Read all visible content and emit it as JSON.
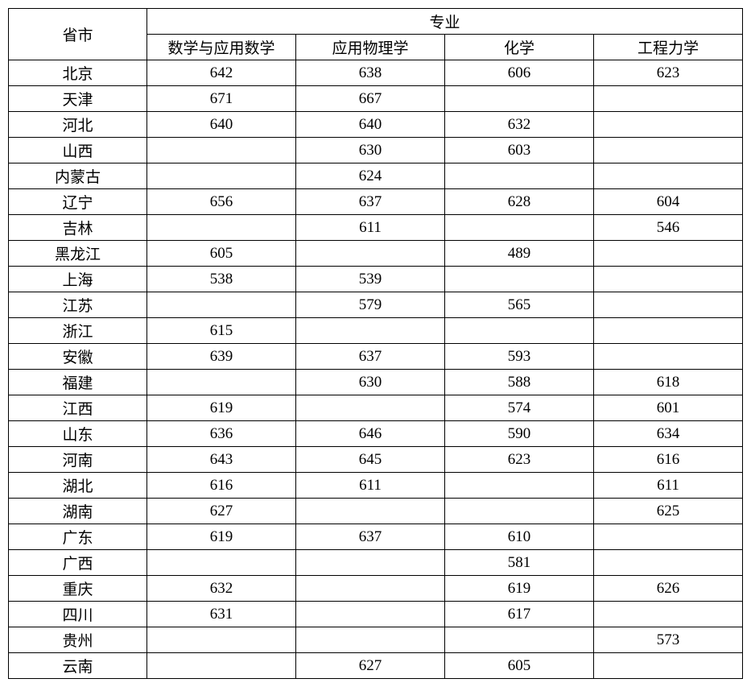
{
  "headers": {
    "province": "省市",
    "majorGroup": "专业",
    "majors": [
      "数学与应用数学",
      "应用物理学",
      "化学",
      "工程力学"
    ]
  },
  "rows": [
    {
      "province": "北京",
      "values": [
        "642",
        "638",
        "606",
        "623"
      ]
    },
    {
      "province": "天津",
      "values": [
        "671",
        "667",
        "",
        ""
      ]
    },
    {
      "province": "河北",
      "values": [
        "640",
        "640",
        "632",
        ""
      ]
    },
    {
      "province": "山西",
      "values": [
        "",
        "630",
        "603",
        ""
      ]
    },
    {
      "province": "内蒙古",
      "values": [
        "",
        "624",
        "",
        ""
      ]
    },
    {
      "province": "辽宁",
      "values": [
        "656",
        "637",
        "628",
        "604"
      ]
    },
    {
      "province": "吉林",
      "values": [
        "",
        "611",
        "",
        "546"
      ]
    },
    {
      "province": "黑龙江",
      "values": [
        "605",
        "",
        "489",
        ""
      ]
    },
    {
      "province": "上海",
      "values": [
        "538",
        "539",
        "",
        ""
      ]
    },
    {
      "province": "江苏",
      "values": [
        "",
        "579",
        "565",
        ""
      ]
    },
    {
      "province": "浙江",
      "values": [
        "615",
        "",
        "",
        ""
      ]
    },
    {
      "province": "安徽",
      "values": [
        "639",
        "637",
        "593",
        ""
      ]
    },
    {
      "province": "福建",
      "values": [
        "",
        "630",
        "588",
        "618"
      ]
    },
    {
      "province": "江西",
      "values": [
        "619",
        "",
        "574",
        "601"
      ]
    },
    {
      "province": "山东",
      "values": [
        "636",
        "646",
        "590",
        "634"
      ]
    },
    {
      "province": "河南",
      "values": [
        "643",
        "645",
        "623",
        "616"
      ]
    },
    {
      "province": "湖北",
      "values": [
        "616",
        "611",
        "",
        "611"
      ]
    },
    {
      "province": "湖南",
      "values": [
        "627",
        "",
        "",
        "625"
      ]
    },
    {
      "province": "广东",
      "values": [
        "619",
        "637",
        "610",
        ""
      ]
    },
    {
      "province": "广西",
      "values": [
        "",
        "",
        "581",
        ""
      ]
    },
    {
      "province": "重庆",
      "values": [
        "632",
        "",
        "619",
        "626"
      ]
    },
    {
      "province": "四川",
      "values": [
        "631",
        "",
        "617",
        ""
      ]
    },
    {
      "province": "贵州",
      "values": [
        "",
        "",
        "",
        "573"
      ]
    },
    {
      "province": "云南",
      "values": [
        "",
        "627",
        "605",
        ""
      ]
    }
  ]
}
